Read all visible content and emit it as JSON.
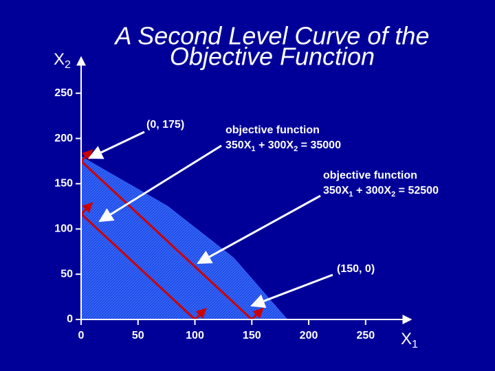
{
  "chart_data": {
    "type": "line",
    "title_lines": [
      "A Second Level Curve of the",
      "Objective Function"
    ],
    "x_label": {
      "main": "X",
      "sub": "1"
    },
    "y_label": {
      "main": "X",
      "sub": "2"
    },
    "xlim": [
      0,
      290
    ],
    "ylim": [
      0,
      290
    ],
    "xticks": [
      0,
      50,
      100,
      150,
      200,
      250
    ],
    "yticks": [
      0,
      50,
      100,
      150,
      200,
      250
    ],
    "series": [
      {
        "type": "area",
        "color": "#3366ff",
        "x": [
          0,
          0,
          76,
          134,
          181
        ],
        "values": [
          0,
          180,
          125,
          68,
          0
        ]
      },
      {
        "type": "line",
        "color": "#cc0000",
        "x": [
          0,
          100
        ],
        "values": [
          116.7,
          0
        ]
      },
      {
        "type": "line",
        "color": "#cc0000",
        "x": [
          0,
          150
        ],
        "values": [
          175,
          0
        ]
      }
    ],
    "annotations": [
      {
        "lines": [
          [
            "(0, 175)"
          ]
        ]
      },
      {
        "lines": [
          [
            "objective function"
          ],
          [
            "350X",
            "1",
            " + 300X",
            "2",
            " = 35000"
          ]
        ]
      },
      {
        "lines": [
          [
            "objective function"
          ],
          [
            "350X",
            "1",
            " + 300X",
            "2",
            " = 52500"
          ]
        ]
      },
      {
        "lines": [
          [
            "(150, 0)"
          ]
        ]
      }
    ]
  }
}
